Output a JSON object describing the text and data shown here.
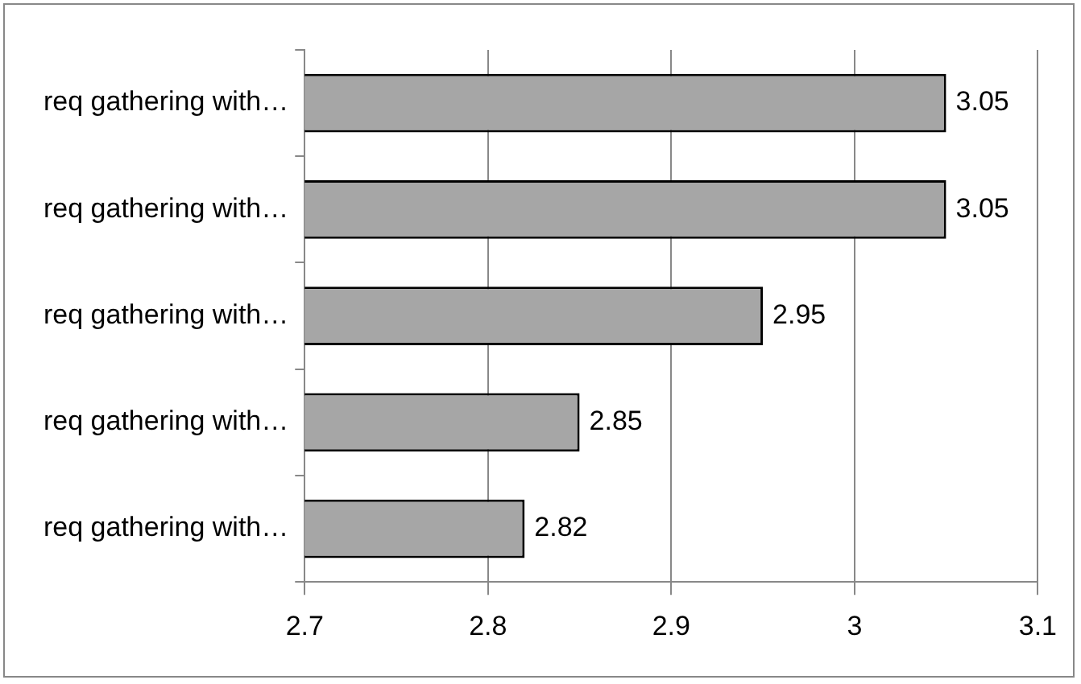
{
  "chart_data": {
    "type": "bar",
    "orientation": "horizontal",
    "categories": [
      "req gathering with…",
      "req gathering with…",
      "req gathering with…",
      "req gathering with…",
      "req gathering with…"
    ],
    "values": [
      3.05,
      3.05,
      2.95,
      2.85,
      2.82
    ],
    "color": "#a6a6a6",
    "xlim": [
      2.7,
      3.1
    ],
    "xticks": [
      2.7,
      2.8,
      2.9,
      3,
      3.1
    ],
    "grid": "x",
    "data_labels": true
  }
}
